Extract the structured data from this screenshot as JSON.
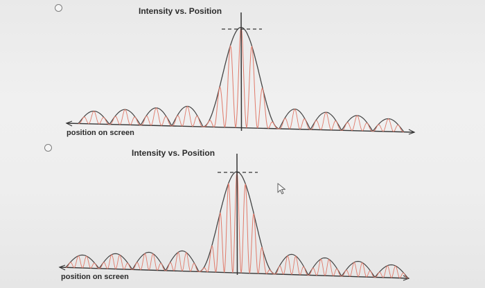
{
  "options": [
    {
      "chart_title": "Intensity vs. Position",
      "x_axis_label": "position on screen"
    },
    {
      "chart_title": "Intensity vs. Position",
      "x_axis_label": "position on screen"
    }
  ],
  "chart_data": [
    {
      "type": "line",
      "title": "Intensity vs. Position",
      "xlabel": "position on screen",
      "ylabel": "",
      "series": [
        {
          "color": "#444444",
          "description_of_shape": "diffraction envelope: central maximum, dashed reference line at its peak, four smaller side lobes each side"
        },
        {
          "color": "#e07a6a",
          "description_of_shape": "interference fringes inside the envelope"
        }
      ],
      "envelope": {
        "center": 0,
        "central_half_width": 1,
        "side_lobe_widths": 0.5,
        "side_lobe_count_each_side": 4,
        "side_lobe_relative_height": 0.2
      },
      "fringes": {
        "count_in_central_max": 7,
        "count_per_side_lobe": 3
      }
    },
    {
      "type": "line",
      "title": "Intensity vs. Position",
      "xlabel": "position on screen",
      "ylabel": "",
      "series": [
        {
          "color": "#444444",
          "description_of_shape": "diffraction envelope: central maximum, dashed reference line at its peak, four smaller side lobes each side"
        },
        {
          "color": "#e07a6a",
          "description_of_shape": "interference fringes inside the envelope"
        }
      ],
      "envelope": {
        "center": 0,
        "central_half_width": 1,
        "side_lobe_widths": 0.5,
        "side_lobe_count_each_side": 4,
        "side_lobe_relative_height": 0.2
      },
      "fringes": {
        "count_in_central_max": 9,
        "count_per_side_lobe": 4
      }
    }
  ]
}
